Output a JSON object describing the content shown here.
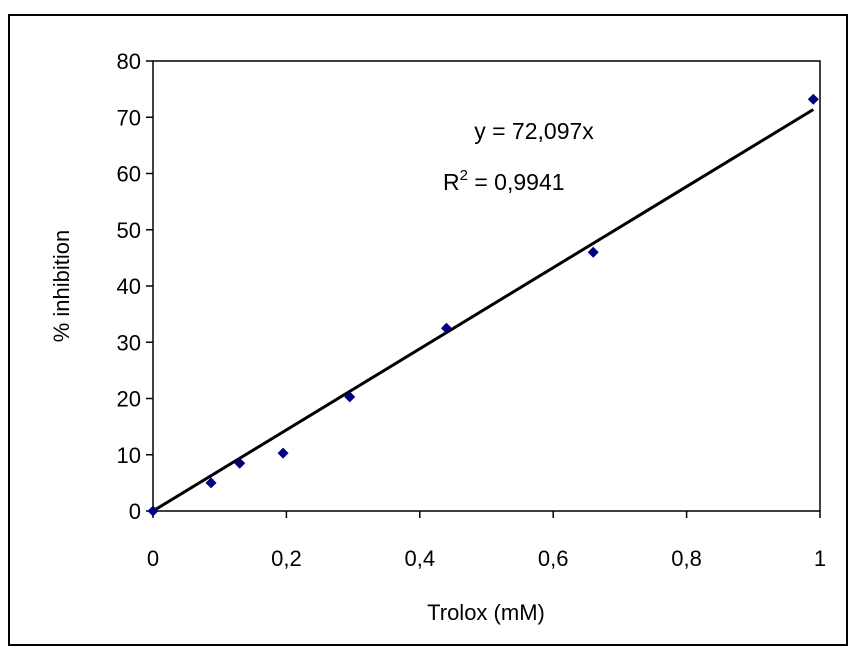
{
  "chart_data": {
    "type": "scatter",
    "title": "",
    "xlabel": "Trolox (mM)",
    "ylabel": "% inhibition",
    "xlim": [
      0,
      1
    ],
    "ylim": [
      0,
      80
    ],
    "x_ticks": [
      "0",
      "0,2",
      "0,4",
      "0,6",
      "0,8",
      "1"
    ],
    "y_ticks": [
      "0",
      "10",
      "20",
      "30",
      "40",
      "50",
      "60",
      "70",
      "80"
    ],
    "grid": false,
    "legend": "none",
    "series": [
      {
        "x": [
          0,
          0.087,
          0.13,
          0.195,
          0.295,
          0.44,
          0.66,
          0.99
        ],
        "y": [
          0,
          5,
          8.5,
          10.3,
          20.3,
          32.5,
          46,
          73.2
        ],
        "color": "#000080",
        "marker": "diamond"
      }
    ],
    "trendline": {
      "slope": 72.097,
      "intercept": 0,
      "color": "#000000",
      "equation_label": "y = 72,097x",
      "r2_prefix": "R",
      "r2_superscript": "2",
      "r2_value": " = 0,9941"
    }
  }
}
